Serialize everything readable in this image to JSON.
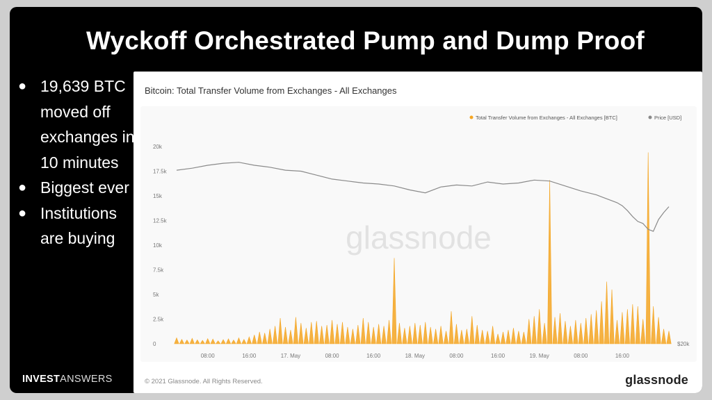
{
  "slide": {
    "title": "Wyckoff Orchestrated Pump and Dump Proof",
    "bullets": [
      "19,639 BTC moved off exchanges in 10 minutes",
      "Biggest ever",
      "Institutions are buying"
    ],
    "brand": {
      "part1": "INVEST",
      "part2": "ANSWERS"
    }
  },
  "panel": {
    "copyright": "© 2021 Glassnode. All Rights Reserved.",
    "logo": "glassnode",
    "watermark": "glassnode"
  },
  "chart_data": {
    "type": "line",
    "title": "Bitcoin: Total Transfer Volume from Exchanges - All Exchanges",
    "x_ticks": [
      "08:00",
      "16:00",
      "17. May",
      "08:00",
      "16:00",
      "18. May",
      "08:00",
      "16:00",
      "19. May",
      "08:00",
      "16:00"
    ],
    "x_range": [
      "2021-05-16 02:00",
      "2021-05-19 22:00"
    ],
    "y_left": {
      "ticks": [
        "0",
        "2.5k",
        "5k",
        "7.5k",
        "10k",
        "12.5k",
        "15k",
        "17.5k",
        "20k"
      ],
      "range": [
        0,
        20000
      ]
    },
    "y_right_label": "$20k",
    "legend": {
      "placement": "top-right"
    },
    "grid": false,
    "series": [
      {
        "name": "Total Transfer Volume from Exchanges - All Exchanges [BTC]",
        "kind": "bar",
        "color": "#f5a623",
        "x_hours": [
          0,
          1,
          2,
          3,
          4,
          5,
          6,
          7,
          8,
          9,
          10,
          11,
          12,
          13,
          14,
          15,
          16,
          17,
          18,
          19,
          20,
          21,
          22,
          23,
          24,
          25,
          26,
          27,
          28,
          29,
          30,
          31,
          32,
          33,
          34,
          35,
          36,
          37,
          38,
          39,
          40,
          41,
          42,
          43,
          44,
          45,
          46,
          47,
          48,
          49,
          50,
          51,
          52,
          53,
          54,
          55,
          56,
          57,
          58,
          59,
          60,
          61,
          62,
          63,
          64,
          65,
          66,
          67,
          68,
          69,
          70,
          71,
          72,
          73,
          74,
          75,
          76,
          77,
          78,
          79,
          80,
          81,
          82,
          83,
          84,
          85,
          86,
          87,
          88,
          89,
          90,
          91,
          92,
          93,
          94,
          95
        ],
        "values": [
          600,
          450,
          380,
          550,
          400,
          350,
          520,
          480,
          300,
          420,
          500,
          380,
          600,
          450,
          700,
          900,
          1200,
          1100,
          1500,
          1800,
          2600,
          1700,
          1400,
          2700,
          2100,
          1600,
          2200,
          2300,
          1800,
          1900,
          2400,
          2000,
          2200,
          1700,
          1500,
          1900,
          2600,
          2200,
          1700,
          2000,
          1800,
          2400,
          8700,
          2100,
          1600,
          1800,
          2100,
          1900,
          2200,
          1700,
          1500,
          1800,
          1300,
          3300,
          2000,
          1400,
          1500,
          2800,
          1900,
          1400,
          1300,
          1800,
          1000,
          1200,
          1400,
          1600,
          1300,
          1200,
          2500,
          2800,
          3500,
          2100,
          16600,
          2700,
          3100,
          2300,
          1800,
          2400,
          2100,
          2600,
          3000,
          3400,
          4300,
          6300,
          5500,
          2400,
          3200,
          3500,
          4000,
          3800,
          2500,
          19400,
          3800,
          2700,
          1500,
          1300
        ]
      },
      {
        "name": "Price [USD]",
        "kind": "line",
        "color": "#8a8a8a",
        "x_hours": [
          0,
          3,
          6,
          9,
          12,
          15,
          18,
          21,
          24,
          27,
          30,
          33,
          36,
          39,
          42,
          45,
          48,
          51,
          54,
          57,
          60,
          63,
          66,
          69,
          72,
          75,
          78,
          81,
          82,
          84,
          85,
          86,
          87,
          88,
          89,
          90,
          91,
          92,
          93,
          94,
          95
        ],
        "values": [
          17600,
          17800,
          18100,
          18300,
          18400,
          18100,
          17900,
          17600,
          17500,
          17100,
          16700,
          16500,
          16300,
          16200,
          16000,
          15600,
          15300,
          15900,
          16100,
          16000,
          16400,
          16200,
          16300,
          16600,
          16500,
          16000,
          15500,
          15100,
          14900,
          14500,
          14300,
          14000,
          13500,
          12900,
          12400,
          12200,
          11600,
          11400,
          12600,
          13300,
          13900
        ]
      }
    ]
  }
}
